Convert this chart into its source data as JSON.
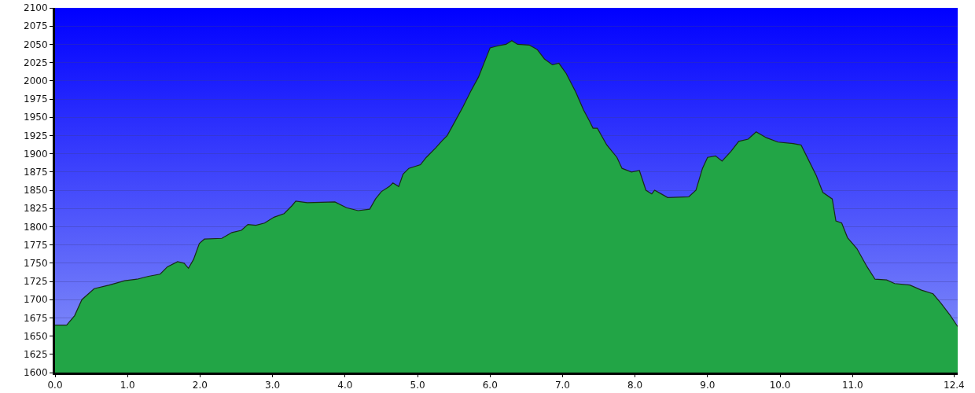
{
  "chart_data": {
    "type": "area",
    "x": [
      0,
      0.16,
      0.27,
      0.37,
      0.54,
      0.75,
      0.96,
      1.13,
      1.29,
      1.45,
      1.55,
      1.69,
      1.78,
      1.84,
      1.91,
      1.99,
      2.06,
      2.3,
      2.44,
      2.57,
      2.66,
      2.77,
      2.89,
      3.02,
      3.16,
      3.27,
      3.32,
      3.48,
      3.86,
      4.02,
      4.18,
      4.34,
      4.42,
      4.5,
      4.61,
      4.66,
      4.74,
      4.8,
      4.88,
      5.04,
      5.12,
      5.25,
      5.34,
      5.41,
      5.52,
      5.63,
      5.73,
      5.84,
      5.92,
      6.0,
      6.11,
      6.22,
      6.3,
      6.38,
      6.54,
      6.65,
      6.75,
      6.86,
      6.95,
      7.05,
      7.18,
      7.29,
      7.37,
      7.42,
      7.48,
      7.61,
      7.75,
      7.82,
      7.95,
      8.06,
      8.15,
      8.23,
      8.27,
      8.36,
      8.45,
      8.74,
      8.84,
      8.93,
      9.0,
      9.11,
      9.2,
      9.32,
      9.43,
      9.56,
      9.67,
      9.81,
      9.97,
      10.18,
      10.29,
      10.4,
      10.5,
      10.59,
      10.72,
      10.77,
      10.85,
      10.93,
      11.06,
      11.2,
      11.31,
      11.47,
      11.58,
      11.79,
      11.95,
      12.11,
      12.22,
      12.35,
      12.45
    ],
    "series": [
      {
        "color": "#22a546",
        "values": [
          1665,
          1665,
          1678,
          1700,
          1715,
          1720,
          1726,
          1728,
          1732,
          1735,
          1745,
          1752,
          1750,
          1743,
          1755,
          1777,
          1783,
          1784,
          1792,
          1795,
          1803,
          1802,
          1805,
          1813,
          1818,
          1829,
          1835,
          1833,
          1834,
          1826,
          1822,
          1824,
          1838,
          1848,
          1855,
          1860,
          1855,
          1872,
          1880,
          1885,
          1895,
          1908,
          1918,
          1925,
          1945,
          1965,
          1985,
          2005,
          2025,
          2045,
          2048,
          2050,
          2055,
          2050,
          2049,
          2043,
          2030,
          2022,
          2024,
          2010,
          1985,
          1960,
          1945,
          1935,
          1935,
          1912,
          1895,
          1880,
          1875,
          1877,
          1850,
          1845,
          1850,
          1845,
          1840,
          1841,
          1850,
          1880,
          1895,
          1897,
          1890,
          1903,
          1917,
          1920,
          1930,
          1922,
          1916,
          1914,
          1912,
          1890,
          1870,
          1847,
          1838,
          1808,
          1805,
          1785,
          1770,
          1745,
          1728,
          1727,
          1722,
          1720,
          1713,
          1708,
          1695,
          1678,
          1663
        ]
      }
    ],
    "xlim": [
      0,
      12.45
    ],
    "xticks": [
      {
        "value": 0,
        "label": "0.0"
      },
      {
        "value": 1,
        "label": "1.0"
      },
      {
        "value": 2,
        "label": "2.0"
      },
      {
        "value": 3,
        "label": "3.0"
      },
      {
        "value": 4,
        "label": "4.0"
      },
      {
        "value": 5,
        "label": "5.0"
      },
      {
        "value": 6,
        "label": "6.0"
      },
      {
        "value": 7,
        "label": "7.0"
      },
      {
        "value": 8,
        "label": "8.0"
      },
      {
        "value": 9,
        "label": "9.0"
      },
      {
        "value": 10,
        "label": "10.0"
      },
      {
        "value": 11,
        "label": "11.0"
      },
      12.4
    ],
    "ylim": [
      1600,
      2100
    ],
    "yticks": [
      1600,
      1625,
      1650,
      1675,
      1700,
      1725,
      1750,
      1775,
      1800,
      1825,
      1850,
      1875,
      1900,
      1925,
      1950,
      1975,
      2000,
      2025,
      2050,
      2075,
      2100
    ],
    "grid": "y",
    "marker": "none",
    "line_style": "solid"
  }
}
